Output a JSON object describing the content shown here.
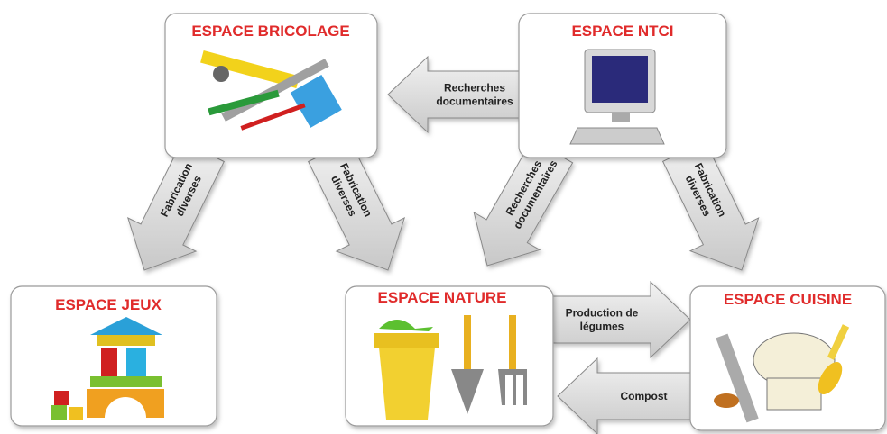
{
  "nodes": [
    {
      "title": "ESPACE BRICOLAGE"
    },
    {
      "title": "ESPACE NTCI"
    },
    {
      "title": "ESPACE JEUX"
    },
    {
      "title": "ESPACE NATURE"
    },
    {
      "title": "ESPACE CUISINE"
    }
  ],
  "arrows": [
    {
      "label": [
        "Recherches",
        "documentaires"
      ]
    },
    {
      "label": [
        "Fabrication",
        "diverses"
      ]
    },
    {
      "label": [
        "Fabrication",
        "diverses"
      ]
    },
    {
      "label": [
        "Recherches",
        "documentaires"
      ]
    },
    {
      "label": [
        "Fabrication",
        "diverses"
      ]
    },
    {
      "label": [
        "Production de",
        "légumes"
      ]
    },
    {
      "label": [
        "Compost"
      ]
    }
  ]
}
